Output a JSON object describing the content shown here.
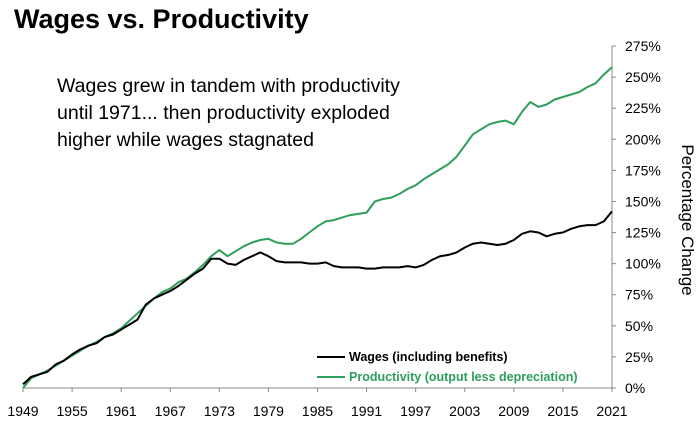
{
  "chart_data": {
    "type": "line",
    "title": "Wages vs. Productivity",
    "annotation": [
      "Wages grew in tandem with productivity",
      "until 1971... then productivity exploded",
      "higher while wages stagnated"
    ],
    "xlabel": "",
    "ylabel": "Percentage Change",
    "xlim": [
      1949,
      2021
    ],
    "ylim": [
      0,
      275
    ],
    "x_ticks": [
      "1949",
      "1955",
      "1961",
      "1967",
      "1973",
      "1979",
      "1985",
      "1991",
      "1997",
      "2003",
      "2009",
      "2015",
      "2021"
    ],
    "y_ticks": [
      "0%",
      "25%",
      "50%",
      "75%",
      "100%",
      "125%",
      "150%",
      "175%",
      "200%",
      "225%",
      "250%",
      "275%"
    ],
    "y_tick_values": [
      0,
      25,
      50,
      75,
      100,
      125,
      150,
      175,
      200,
      225,
      250,
      275
    ],
    "y_axis_side": "right",
    "grid": false,
    "legend_position": "bottom-right",
    "x": [
      1949,
      1950,
      1951,
      1952,
      1953,
      1954,
      1955,
      1956,
      1957,
      1958,
      1959,
      1960,
      1961,
      1962,
      1963,
      1964,
      1965,
      1966,
      1967,
      1968,
      1969,
      1970,
      1971,
      1972,
      1973,
      1974,
      1975,
      1976,
      1977,
      1978,
      1979,
      1980,
      1981,
      1982,
      1983,
      1984,
      1985,
      1986,
      1987,
      1988,
      1989,
      1990,
      1991,
      1992,
      1993,
      1994,
      1995,
      1996,
      1997,
      1998,
      1999,
      2000,
      2001,
      2002,
      2003,
      2004,
      2005,
      2006,
      2007,
      2008,
      2009,
      2010,
      2011,
      2012,
      2013,
      2014,
      2015,
      2016,
      2017,
      2018,
      2019,
      2020,
      2021
    ],
    "series": [
      {
        "name": "Wages (including benefits)",
        "color": "#000000",
        "values": [
          3,
          9,
          11,
          13,
          19,
          22,
          27,
          31,
          34,
          36,
          41,
          43,
          47,
          51,
          55,
          67,
          72,
          75,
          78,
          82,
          87,
          92,
          96,
          104,
          104,
          100,
          99,
          103,
          106,
          109,
          106,
          102,
          101,
          101,
          101,
          100,
          100,
          101,
          98,
          97,
          97,
          97,
          96,
          96,
          97,
          97,
          97,
          98,
          97,
          99,
          103,
          106,
          107,
          109,
          113,
          116,
          117,
          116,
          115,
          116,
          119,
          124,
          126,
          125,
          122,
          124,
          125,
          128,
          130,
          131,
          131,
          134,
          142
        ]
      },
      {
        "name": "Productivity (output less depreciation)",
        "color": "#2e9e5b",
        "values": [
          0,
          8,
          11,
          14,
          18,
          22,
          26,
          30,
          34,
          37,
          41,
          44,
          48,
          54,
          60,
          66,
          72,
          77,
          80,
          85,
          88,
          93,
          99,
          106,
          111,
          106,
          110,
          114,
          117,
          119,
          120,
          117,
          116,
          116,
          120,
          125,
          130,
          134,
          135,
          137,
          139,
          140,
          141,
          150,
          152,
          153,
          156,
          160,
          163,
          168,
          172,
          176,
          180,
          186,
          195,
          204,
          208,
          212,
          214,
          215,
          212,
          222,
          230,
          226,
          228,
          232,
          234,
          236,
          238,
          242,
          245,
          252,
          258
        ]
      }
    ]
  }
}
